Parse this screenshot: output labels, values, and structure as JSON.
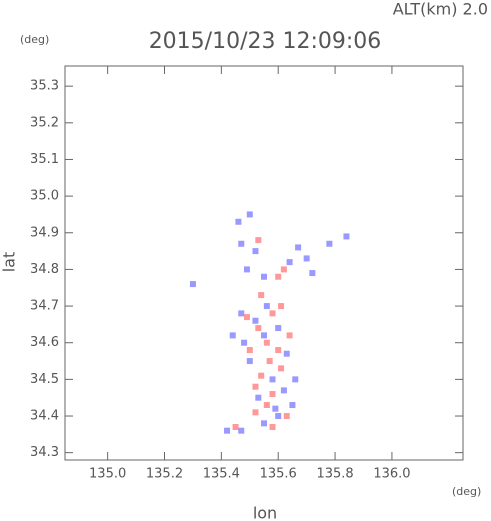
{
  "chart_data": {
    "type": "scatter",
    "title": "2015/10/23 12:09:06",
    "annotation": "ALT(km)  2.0",
    "y_unit": "(deg)",
    "x_unit": "(deg)",
    "xlabel": "lon",
    "ylabel": "lat",
    "xlim": [
      134.85,
      136.25
    ],
    "ylim": [
      34.28,
      35.355
    ],
    "xticks": [
      {
        "value": 135,
        "label": "135.0"
      },
      135.2,
      135.4,
      135.6,
      135.8,
      {
        "value": 136,
        "label": "136.0"
      }
    ],
    "yticks": [
      34.3,
      34.4,
      34.5,
      34.6,
      34.7,
      34.8,
      34.9,
      {
        "value": 35,
        "label": "35.0"
      },
      35.1,
      35.2,
      35.3
    ],
    "series": [
      {
        "color": "#7f7fff",
        "x": [
          135.46,
          135.5,
          135.47,
          135.52,
          135.49,
          135.55,
          135.67,
          135.7,
          135.72,
          135.78,
          135.84,
          135.64,
          135.47,
          135.52,
          135.55,
          135.48,
          135.6,
          135.63,
          135.5,
          135.58,
          135.62,
          135.66,
          135.53,
          135.59,
          135.65,
          135.55,
          135.47,
          135.42,
          135.6,
          135.3,
          135.44,
          135.56
        ],
        "y": [
          34.93,
          34.95,
          34.87,
          34.85,
          34.8,
          34.78,
          34.86,
          34.83,
          34.79,
          34.87,
          34.89,
          34.82,
          34.68,
          34.66,
          34.62,
          34.6,
          34.64,
          34.57,
          34.55,
          34.5,
          34.47,
          34.5,
          34.45,
          34.42,
          34.43,
          34.38,
          34.36,
          34.36,
          34.4,
          34.76,
          34.62,
          34.7
        ]
      },
      {
        "color": "#ff7f7f",
        "x": [
          135.53,
          135.6,
          135.62,
          135.54,
          135.58,
          135.53,
          135.56,
          135.6,
          135.5,
          135.57,
          135.61,
          135.54,
          135.52,
          135.58,
          135.56,
          135.63,
          135.52,
          135.45,
          135.58,
          135.49,
          135.64,
          135.61
        ],
        "y": [
          34.88,
          34.78,
          34.8,
          34.73,
          34.68,
          34.64,
          34.6,
          34.58,
          34.58,
          34.55,
          34.53,
          34.51,
          34.48,
          34.46,
          34.43,
          34.4,
          34.41,
          34.37,
          34.37,
          34.67,
          34.62,
          34.7
        ]
      }
    ]
  }
}
